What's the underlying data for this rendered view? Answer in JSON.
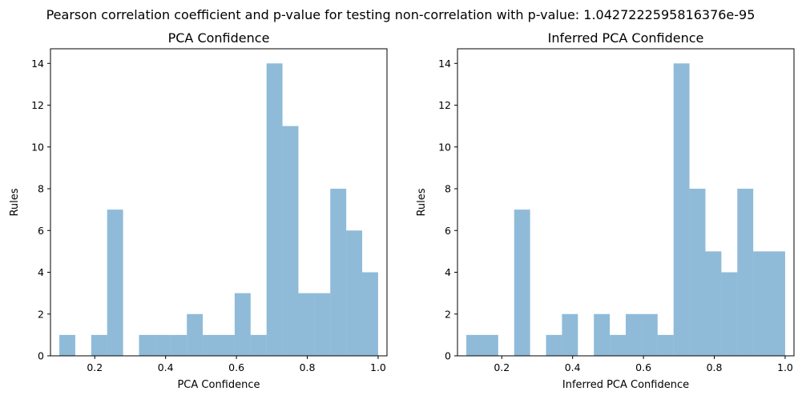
{
  "figure": {
    "suptitle": "Pearson correlation coefficient and p-value for testing non-correlation with p-value: 1.0427222595816376e-95"
  },
  "chart_data": [
    {
      "type": "histogram",
      "title": "PCA Confidence",
      "xlabel": "PCA Confidence",
      "ylabel": "Rules",
      "xlim": [
        0.075,
        1.025
      ],
      "ylim": [
        0,
        14.7
      ],
      "xticks": [
        "0.2",
        "0.4",
        "0.6",
        "0.8",
        "1.0"
      ],
      "xtick_values": [
        0.2,
        0.4,
        0.6,
        0.8,
        1.0
      ],
      "yticks": [
        "0",
        "2",
        "4",
        "6",
        "8",
        "10",
        "12",
        "14"
      ],
      "ytick_values": [
        0,
        2,
        4,
        6,
        8,
        10,
        12,
        14
      ],
      "bin_start": 0.1,
      "bin_end": 1.0,
      "counts": [
        1,
        0,
        1,
        7,
        0,
        1,
        1,
        1,
        2,
        1,
        1,
        3,
        1,
        14,
        11,
        3,
        3,
        8,
        6,
        4
      ],
      "color": "#1f77b4",
      "alpha": 0.5
    },
    {
      "type": "histogram",
      "title": "Inferred PCA Confidence",
      "xlabel": "Inferred PCA Confidence",
      "ylabel": "Rules",
      "xlim": [
        0.075,
        1.025
      ],
      "ylim": [
        0,
        14.7
      ],
      "xticks": [
        "0.2",
        "0.4",
        "0.6",
        "0.8",
        "1.0"
      ],
      "xtick_values": [
        0.2,
        0.4,
        0.6,
        0.8,
        1.0
      ],
      "yticks": [
        "0",
        "2",
        "4",
        "6",
        "8",
        "10",
        "12",
        "14"
      ],
      "ytick_values": [
        0,
        2,
        4,
        6,
        8,
        10,
        12,
        14
      ],
      "bin_start": 0.1,
      "bin_end": 1.0,
      "counts": [
        1,
        1,
        0,
        7,
        0,
        1,
        2,
        0,
        2,
        1,
        2,
        2,
        1,
        14,
        8,
        5,
        4,
        8,
        5,
        5
      ],
      "color": "#1f77b4",
      "alpha": 0.5
    }
  ]
}
